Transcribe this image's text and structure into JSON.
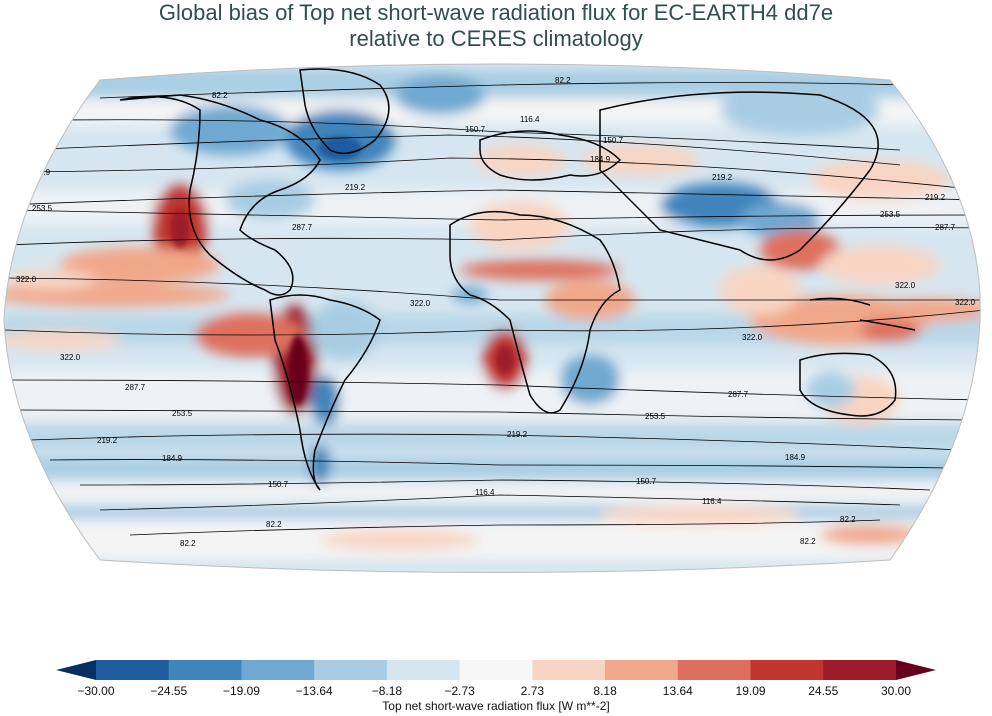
{
  "title_line1": "Global bias of Top net short-wave radiation flux for EC-EARTH4 dd7e",
  "title_line2": "relative to CERES climatology",
  "colorbar": {
    "label": "Top net short-wave radiation flux [W m**-2]",
    "ticks": [
      "−30.00",
      "−24.55",
      "−19.09",
      "−13.64",
      "−8.18",
      "−2.73",
      "2.73",
      "8.18",
      "13.64",
      "19.09",
      "24.55",
      "30.00"
    ],
    "colors": [
      "#053061",
      "#1f5c9e",
      "#3f84bb",
      "#6fa9d1",
      "#a8cde3",
      "#d6e6f0",
      "#f7f7f7",
      "#f8d5c3",
      "#f1a78a",
      "#de6f5d",
      "#c0362f",
      "#9e1b2a",
      "#67001f"
    ]
  },
  "contour_labels": [
    "82.2",
    "116.4",
    "150.7",
    "184.9",
    "219.2",
    "253.5",
    "287.7",
    "322.0"
  ],
  "colors": {
    "title": "#2f4f4f",
    "ocean_base": "#d6e6f0",
    "coast": "#000000"
  }
}
